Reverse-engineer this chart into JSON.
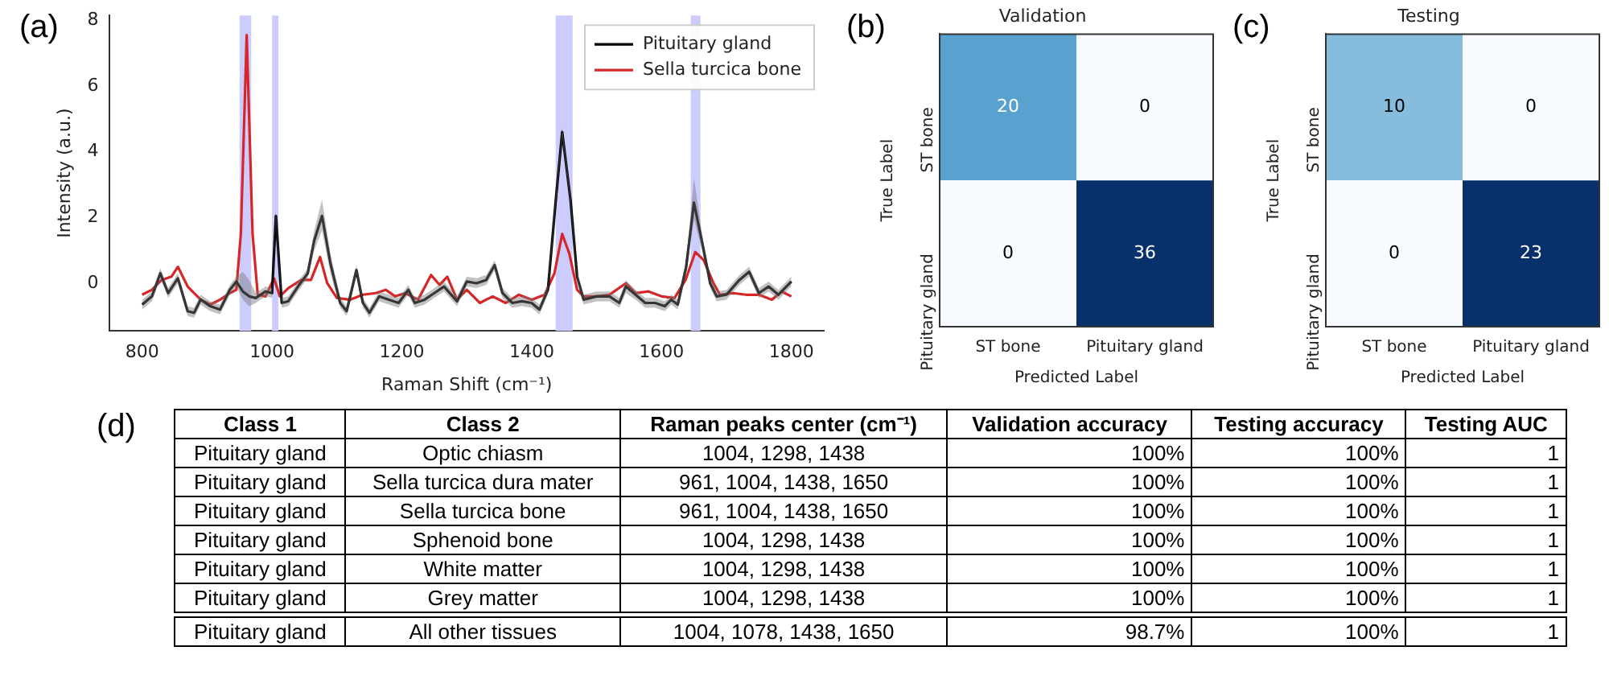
{
  "chart_data": [
    {
      "type": "line",
      "annotations": [
        "(a)"
      ],
      "xlabel": "Raman Shift (cm⁻¹)",
      "ylabel": "Intensity (a.u.)",
      "xlim": [
        750,
        1850
      ],
      "xticks": [
        800,
        1000,
        1200,
        1400,
        1600,
        1800
      ],
      "ylim": [
        -1.45,
        8.15
      ],
      "yticks": [
        0,
        2,
        4,
        6,
        8
      ],
      "legend": "top right",
      "bands": [
        {
          "axis": "x",
          "from": 950,
          "to": 968,
          "color": "#ccccff"
        },
        {
          "axis": "x",
          "from": 1000,
          "to": 1010,
          "color": "#ccccff"
        },
        {
          "axis": "x",
          "from": 1437,
          "to": 1463,
          "color": "#ccccff"
        },
        {
          "axis": "x",
          "from": 1645,
          "to": 1660,
          "color": "#ccccff"
        }
      ],
      "series": [
        {
          "name": "Pituitary gland",
          "color": "#000000",
          "x": [
            800,
            815,
            828,
            840,
            855,
            870,
            880,
            890,
            905,
            920,
            935,
            945,
            955,
            965,
            975,
            990,
            1000,
            1006,
            1015,
            1025,
            1040,
            1055,
            1065,
            1077,
            1090,
            1105,
            1115,
            1130,
            1140,
            1150,
            1165,
            1180,
            1195,
            1210,
            1220,
            1235,
            1250,
            1265,
            1285,
            1300,
            1315,
            1330,
            1343,
            1355,
            1370,
            1385,
            1400,
            1412,
            1425,
            1437,
            1447,
            1460,
            1470,
            1480,
            1500,
            1520,
            1535,
            1545,
            1560,
            1575,
            1590,
            1605,
            1615,
            1625,
            1638,
            1650,
            1663,
            1675,
            1685,
            1700,
            1720,
            1735,
            1750,
            1765,
            1780,
            1800
          ],
          "values": [
            -0.65,
            -0.4,
            0.3,
            -0.3,
            0.15,
            -0.85,
            -0.9,
            -0.5,
            -0.7,
            -0.8,
            -0.2,
            0.05,
            -0.25,
            -0.4,
            -0.45,
            -0.25,
            -0.3,
            2.05,
            -0.6,
            -0.55,
            -0.1,
            0.3,
            1.3,
            2.05,
            0.6,
            -0.6,
            -0.85,
            0.4,
            -0.6,
            -0.9,
            -0.4,
            -0.5,
            -0.6,
            -0.2,
            -0.6,
            -0.5,
            -0.3,
            -0.1,
            -0.55,
            0.05,
            0,
            0.1,
            0.55,
            -0.3,
            -0.6,
            -0.55,
            -0.6,
            -0.8,
            -0.2,
            2.5,
            4.6,
            2.5,
            0.2,
            -0.5,
            -0.4,
            -0.4,
            -0.6,
            -0.1,
            -0.35,
            -0.6,
            -0.6,
            -0.7,
            -0.5,
            -0.65,
            0.5,
            2.45,
            1.2,
            0,
            -0.4,
            -0.35,
            0.1,
            0.35,
            -0.3,
            -0.1,
            -0.35,
            0.05
          ],
          "lower": [
            -0.8,
            -0.55,
            0.15,
            -0.45,
            0,
            -1.0,
            -1.05,
            -0.65,
            -0.85,
            -0.95,
            -0.35,
            -0.1,
            -0.5,
            -0.7,
            -0.6,
            -0.4,
            -0.45,
            1.9,
            -0.75,
            -0.7,
            -0.25,
            0.15,
            1.0,
            1.6,
            0.3,
            -0.75,
            -1.0,
            0.25,
            -0.75,
            -1.05,
            -0.55,
            -0.65,
            -0.75,
            -0.35,
            -0.75,
            -0.65,
            -0.45,
            -0.25,
            -0.7,
            -0.1,
            -0.15,
            -0.05,
            0.4,
            -0.45,
            -0.75,
            -0.7,
            -0.75,
            -0.95,
            -0.35,
            2.35,
            4.45,
            2.35,
            0.05,
            -0.65,
            -0.55,
            -0.55,
            -0.75,
            -0.3,
            -0.5,
            -0.75,
            -0.75,
            -0.85,
            -0.65,
            -0.8,
            0.3,
            1.95,
            0.95,
            -0.15,
            -0.55,
            -0.5,
            -0.05,
            0.2,
            -0.45,
            -0.25,
            -0.5,
            -0.1
          ],
          "upper": [
            -0.5,
            -0.25,
            0.45,
            -0.15,
            0.3,
            -0.7,
            -0.75,
            -0.35,
            -0.55,
            -0.65,
            -0.05,
            0.2,
            0.35,
            0.1,
            -0.3,
            -0.1,
            -0.15,
            2.2,
            -0.45,
            -0.4,
            0.05,
            0.45,
            1.6,
            2.55,
            0.9,
            -0.45,
            -0.7,
            0.55,
            -0.45,
            -0.75,
            -0.25,
            -0.35,
            -0.45,
            -0.05,
            -0.45,
            -0.35,
            -0.15,
            0.05,
            -0.4,
            0.2,
            0.15,
            0.25,
            0.7,
            -0.15,
            -0.45,
            -0.4,
            -0.45,
            -0.65,
            -0.05,
            2.65,
            4.75,
            2.65,
            0.35,
            -0.35,
            -0.25,
            -0.25,
            -0.45,
            0.1,
            -0.2,
            -0.45,
            -0.45,
            -0.55,
            -0.35,
            -0.5,
            0.7,
            3.2,
            1.45,
            0.15,
            -0.25,
            -0.2,
            0.25,
            0.5,
            -0.15,
            0.05,
            -0.2,
            0.2
          ]
        },
        {
          "name": "Sella turcica bone",
          "color": "#d62728",
          "x": [
            800,
            815,
            830,
            845,
            855,
            870,
            890,
            905,
            920,
            935,
            945,
            952,
            961,
            970,
            978,
            990,
            1003,
            1012,
            1025,
            1045,
            1060,
            1074,
            1085,
            1100,
            1120,
            1140,
            1160,
            1175,
            1190,
            1205,
            1225,
            1245,
            1258,
            1270,
            1285,
            1300,
            1320,
            1340,
            1360,
            1380,
            1400,
            1420,
            1435,
            1447,
            1458,
            1470,
            1480,
            1500,
            1520,
            1545,
            1560,
            1580,
            1600,
            1620,
            1637,
            1652,
            1665,
            1680,
            1690,
            1710,
            1730,
            1750,
            1770,
            1785,
            1800
          ],
          "values": [
            -0.35,
            -0.2,
            0.1,
            0.2,
            0.5,
            -0.1,
            -0.5,
            -0.65,
            -0.5,
            -0.3,
            -0.2,
            1.5,
            7.55,
            1.5,
            -0.35,
            -0.4,
            0.15,
            -0.4,
            -0.15,
            0.1,
            0.1,
            0.8,
            0,
            -0.45,
            -0.5,
            -0.35,
            -0.3,
            -0.2,
            -0.4,
            -0.3,
            -0.5,
            0.25,
            -0.05,
            0.2,
            -0.5,
            -0.2,
            -0.6,
            -0.4,
            -0.6,
            -0.35,
            -0.5,
            -0.35,
            0.3,
            1.5,
            0.9,
            -0.2,
            -0.4,
            -0.4,
            -0.35,
            0,
            -0.3,
            -0.25,
            -0.4,
            -0.45,
            0.1,
            0.95,
            0.7,
            0,
            -0.35,
            -0.3,
            -0.35,
            -0.35,
            -0.5,
            -0.25,
            -0.4
          ]
        }
      ]
    },
    {
      "type": "heatmap",
      "annotations": [
        "(b)"
      ],
      "title": "Validation",
      "xlabel": "Predicted Label",
      "ylabel": "True Label",
      "categories": [
        "ST bone",
        "Pituitary gland"
      ],
      "y_categories": [
        "ST bone",
        "Pituitary gland"
      ],
      "cells": [
        [
          20,
          0
        ],
        [
          0,
          36
        ]
      ],
      "data_labels": true
    },
    {
      "type": "heatmap",
      "annotations": [
        "(c)"
      ],
      "title": "Testing",
      "xlabel": "Predicted Label",
      "ylabel": "True Label",
      "categories": [
        "ST bone",
        "Pituitary gland"
      ],
      "y_categories": [
        "ST bone",
        "Pituitary gland"
      ],
      "cells": [
        [
          10,
          0
        ],
        [
          0,
          23
        ]
      ],
      "data_labels": true
    },
    {
      "type": "other",
      "title": "(d)",
      "categories": [
        "Class 1",
        "Class 2",
        "Raman peaks center (cm⁻¹)",
        "Validation accuracy",
        "Testing accuracy",
        "Testing AUC"
      ],
      "annotations": [
        "Pituitary gland",
        "Optic chiasm",
        "1004, 1298, 1438",
        "100%",
        "100%",
        "1",
        "Pituitary gland",
        "Sella turcica dura mater",
        "961, 1004, 1438, 1650",
        "100%",
        "100%",
        "1",
        "Pituitary gland",
        "Sella turcica bone",
        "961, 1004, 1438, 1650",
        "100%",
        "100%",
        "1",
        "Pituitary gland",
        "Sphenoid bone",
        "1004, 1298, 1438",
        "100%",
        "100%",
        "1",
        "Pituitary gland",
        "White matter",
        "1004, 1298, 1438",
        "100%",
        "100%",
        "1",
        "Pituitary gland",
        "Grey matter",
        "1004, 1298, 1438",
        "100%",
        "100%",
        "1",
        "Pituitary gland",
        "All other tissues",
        "1004, 1078, 1438, 1650",
        "98.7%",
        "100%",
        "1"
      ]
    }
  ]
}
